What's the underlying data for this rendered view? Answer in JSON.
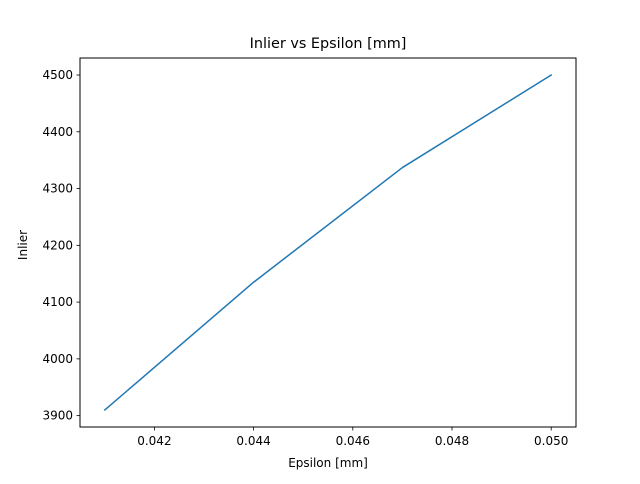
{
  "chart_data": {
    "type": "line",
    "title": "Inlier vs Epsilon [mm]",
    "xlabel": "Epsilon [mm]",
    "ylabel": "Inlier",
    "xlim": [
      0.0405,
      0.0505
    ],
    "ylim": [
      3880,
      4530
    ],
    "grid": false,
    "legend": "none",
    "x_ticks": [
      "0.042",
      "0.044",
      "0.046",
      "0.048",
      "0.050"
    ],
    "x_tick_values": [
      0.042,
      0.044,
      0.046,
      0.048,
      0.05
    ],
    "y_ticks": [
      "3900",
      "4000",
      "4100",
      "4200",
      "4300",
      "4400",
      "4500"
    ],
    "y_tick_values": [
      3900,
      4000,
      4100,
      4200,
      4300,
      4400,
      4500
    ],
    "series": [
      {
        "color": "#1f77b4",
        "x": [
          0.041,
          0.044,
          0.047,
          0.05
        ],
        "y": [
          3910,
          4135,
          4337,
          4500
        ]
      }
    ]
  }
}
